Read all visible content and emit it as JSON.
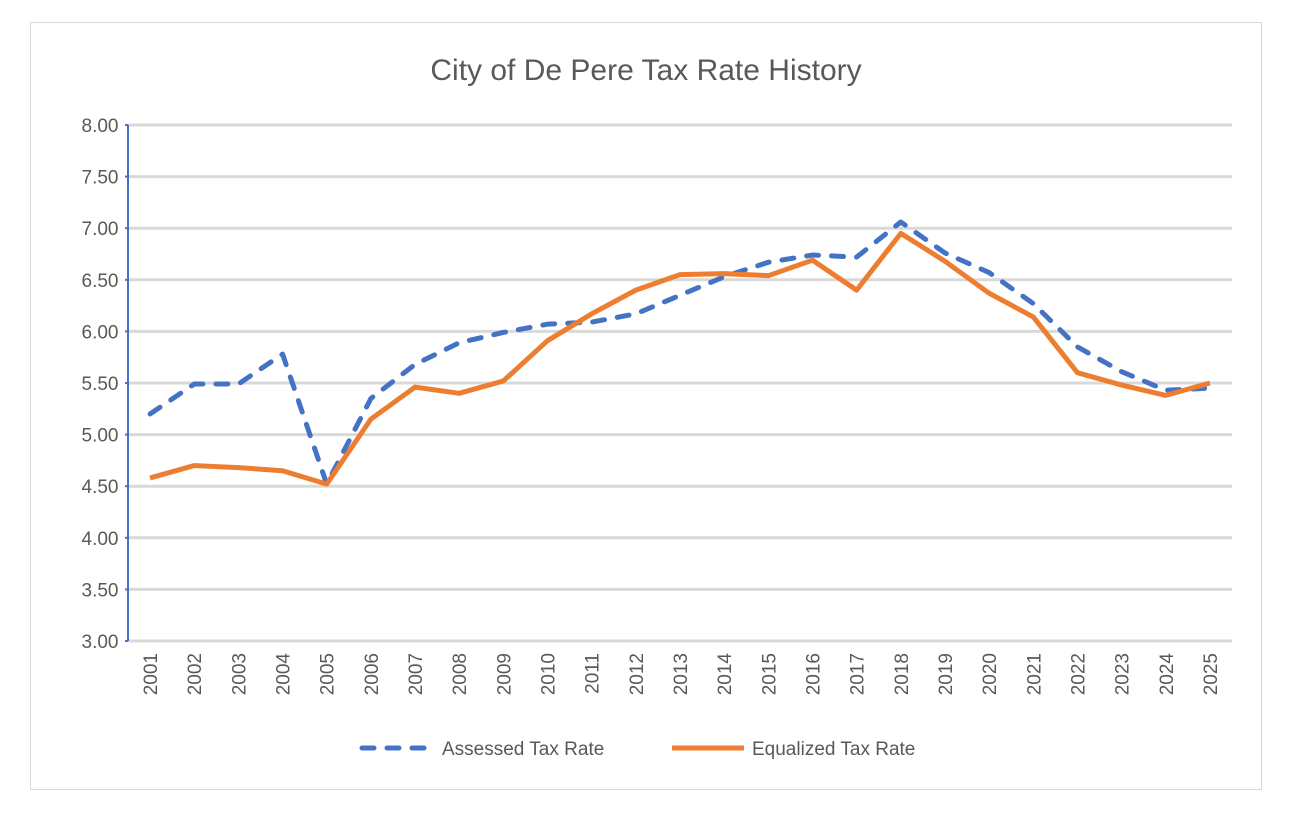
{
  "chart_data": {
    "type": "line",
    "title": "City of De Pere Tax Rate History",
    "xlabel": "",
    "ylabel": "",
    "ylim": [
      3.0,
      8.0
    ],
    "yticks": [
      "3.00",
      "3.50",
      "4.00",
      "4.50",
      "5.00",
      "5.50",
      "6.00",
      "6.50",
      "7.00",
      "7.50",
      "8.00"
    ],
    "grid": true,
    "legend_position": "bottom",
    "categories": [
      "2001",
      "2002",
      "2003",
      "2004",
      "2005",
      "2006",
      "2007",
      "2008",
      "2009",
      "2010",
      "2011",
      "2012",
      "2013",
      "2014",
      "2015",
      "2016",
      "2017",
      "2018",
      "2019",
      "2020",
      "2021",
      "2022",
      "2023",
      "2024",
      "2025"
    ],
    "series": [
      {
        "name": "Assessed Tax Rate",
        "color": "#4472c4",
        "style": "dashed",
        "values": [
          5.2,
          5.49,
          5.49,
          5.78,
          4.52,
          5.35,
          5.68,
          5.89,
          5.99,
          6.07,
          6.09,
          6.17,
          6.35,
          6.53,
          6.67,
          6.74,
          6.72,
          7.06,
          6.76,
          6.57,
          6.27,
          5.85,
          5.61,
          5.43,
          5.45
        ]
      },
      {
        "name": "Equalized Tax Rate",
        "color": "#ed7d31",
        "style": "solid",
        "values": [
          4.58,
          4.7,
          4.68,
          4.65,
          4.52,
          5.15,
          5.46,
          5.4,
          5.52,
          5.91,
          6.17,
          6.4,
          6.55,
          6.56,
          6.54,
          6.69,
          6.4,
          6.95,
          6.68,
          6.37,
          6.14,
          5.6,
          5.48,
          5.38,
          5.5
        ]
      }
    ]
  }
}
